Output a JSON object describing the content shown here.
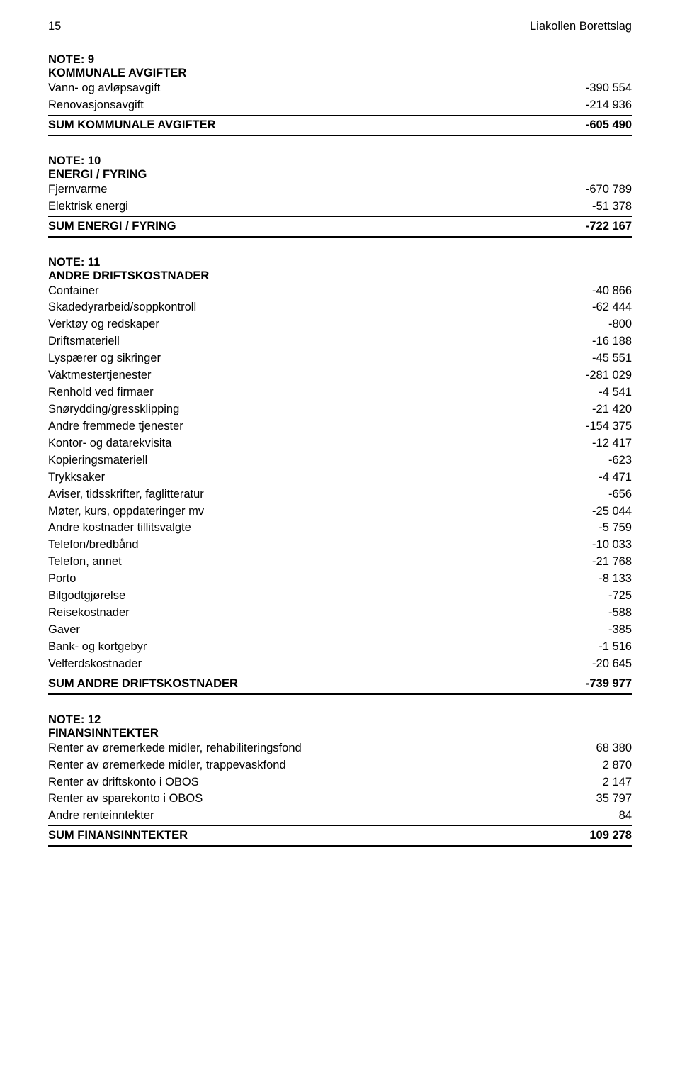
{
  "header": {
    "page_num": "15",
    "doc_title": "Liakollen Borettslag"
  },
  "note9": {
    "note": "NOTE: 9",
    "title": "KOMMUNALE AVGIFTER",
    "rows": [
      {
        "label": "Vann- og avløpsavgift",
        "value": "-390 554"
      },
      {
        "label": "Renovasjonsavgift",
        "value": "-214 936"
      }
    ],
    "sum_label": "SUM KOMMUNALE AVGIFTER",
    "sum_value": "-605 490"
  },
  "note10": {
    "note": "NOTE: 10",
    "title": "ENERGI / FYRING",
    "rows": [
      {
        "label": "Fjernvarme",
        "value": "-670 789"
      },
      {
        "label": "Elektrisk energi",
        "value": "-51 378"
      }
    ],
    "sum_label": "SUM ENERGI / FYRING",
    "sum_value": "-722 167"
  },
  "note11": {
    "note": "NOTE: 11",
    "title": "ANDRE DRIFTSKOSTNADER",
    "rows": [
      {
        "label": "Container",
        "value": "-40 866"
      },
      {
        "label": "Skadedyrarbeid/soppkontroll",
        "value": "-62 444"
      },
      {
        "label": "Verktøy og redskaper",
        "value": "-800"
      },
      {
        "label": "Driftsmateriell",
        "value": "-16 188"
      },
      {
        "label": "Lyspærer og sikringer",
        "value": "-45 551"
      },
      {
        "label": "Vaktmestertjenester",
        "value": "-281 029"
      },
      {
        "label": "Renhold ved firmaer",
        "value": "-4 541"
      },
      {
        "label": "Snørydding/gressklipping",
        "value": "-21 420"
      },
      {
        "label": "Andre fremmede tjenester",
        "value": "-154 375"
      },
      {
        "label": "Kontor- og datarekvisita",
        "value": "-12 417"
      },
      {
        "label": "Kopieringsmateriell",
        "value": "-623"
      },
      {
        "label": "Trykksaker",
        "value": "-4 471"
      },
      {
        "label": "Aviser, tidsskrifter, faglitteratur",
        "value": "-656"
      },
      {
        "label": "Møter, kurs, oppdateringer mv",
        "value": "-25 044"
      },
      {
        "label": "Andre kostnader tillitsvalgte",
        "value": "-5 759"
      },
      {
        "label": "Telefon/bredbånd",
        "value": "-10 033"
      },
      {
        "label": "Telefon, annet",
        "value": "-21 768"
      },
      {
        "label": "Porto",
        "value": "-8 133"
      },
      {
        "label": "Bilgodtgjørelse",
        "value": "-725"
      },
      {
        "label": "Reisekostnader",
        "value": "-588"
      },
      {
        "label": "Gaver",
        "value": "-385"
      },
      {
        "label": "Bank- og kortgebyr",
        "value": "-1 516"
      },
      {
        "label": "Velferdskostnader",
        "value": "-20 645"
      }
    ],
    "sum_label": "SUM ANDRE DRIFTSKOSTNADER",
    "sum_value": "-739 977"
  },
  "note12": {
    "note": "NOTE: 12",
    "title": "FINANSINNTEKTER",
    "rows": [
      {
        "label": "Renter av øremerkede midler, rehabiliteringsfond",
        "value": "68 380"
      },
      {
        "label": "Renter av øremerkede midler, trappevaskfond",
        "value": "2 870"
      },
      {
        "label": "Renter av driftskonto i OBOS",
        "value": "2 147"
      },
      {
        "label": "Renter av sparekonto i OBOS",
        "value": "35 797"
      },
      {
        "label": "Andre renteinntekter",
        "value": "84"
      }
    ],
    "sum_label": "SUM FINANSINNTEKTER",
    "sum_value": "109 278"
  }
}
